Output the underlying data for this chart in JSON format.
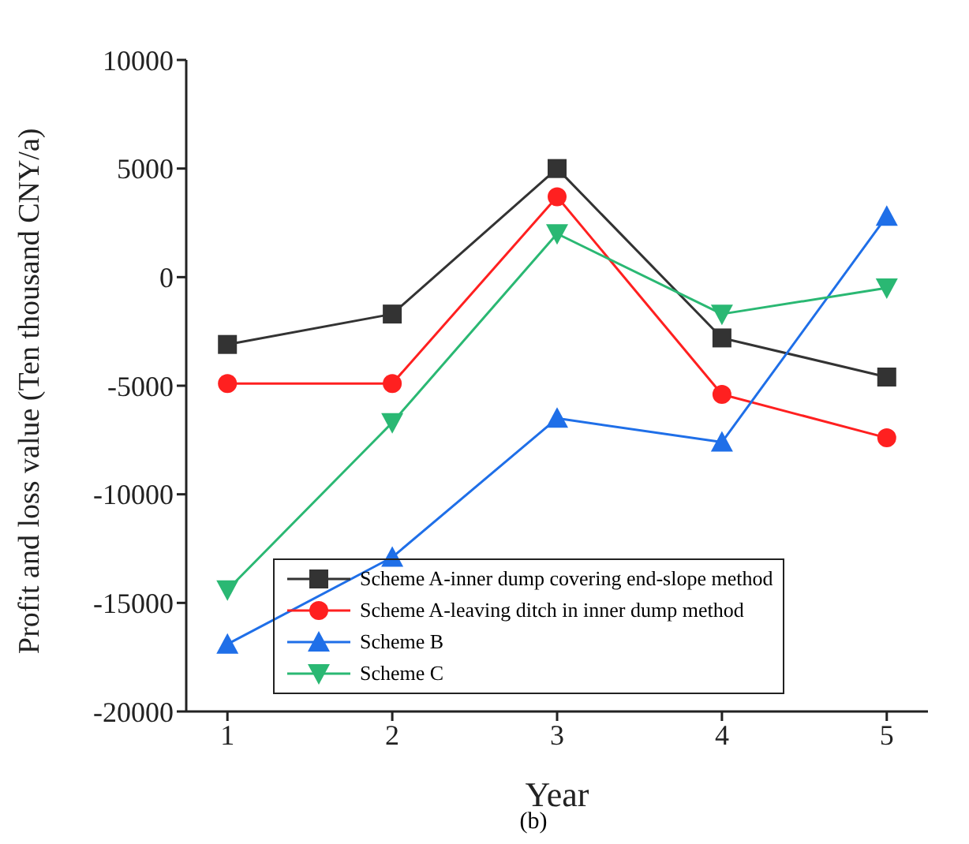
{
  "chart_data": {
    "type": "line",
    "xlabel": "Year",
    "ylabel": "Profit and loss value (Ten thousand CNY/a)",
    "x": [
      1,
      2,
      3,
      4,
      5
    ],
    "series": [
      {
        "name": "Scheme A-inner dump covering end-slope method",
        "color": "#333333",
        "marker": "square",
        "values": [
          -3100,
          -1700,
          5000,
          -2800,
          -4600
        ]
      },
      {
        "name": "Scheme A-leaving ditch in inner dump method",
        "color": "#ff2020",
        "marker": "circle",
        "values": [
          -4900,
          -4900,
          3700,
          -5400,
          -7400
        ]
      },
      {
        "name": "Scheme B",
        "color": "#1f6fe8",
        "marker": "triangle",
        "values": [
          -16900,
          -12900,
          -6500,
          -7600,
          2800
        ]
      },
      {
        "name": "Scheme C",
        "color": "#2ab873",
        "marker": "triangle-down",
        "values": [
          -14400,
          -6700,
          2000,
          -1700,
          -500
        ]
      }
    ],
    "xlim": [
      0.75,
      5.25
    ],
    "xticks": [
      1,
      2,
      3,
      4,
      5
    ],
    "ylim": [
      -20000,
      10000
    ],
    "yticks": [
      -20000,
      -15000,
      -10000,
      -5000,
      0,
      5000,
      10000
    ],
    "grid": false,
    "legend": "bottom left",
    "annotations": [
      "(b)"
    ]
  }
}
